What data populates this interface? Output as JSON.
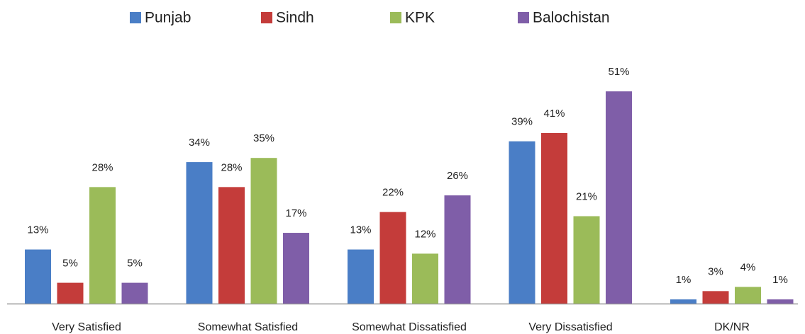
{
  "chart_data": {
    "type": "bar",
    "categories": [
      "Very Satisfied",
      "Somewhat Satisfied",
      "Somewhat Dissatisfied",
      "Very Dissatisfied",
      "DK/NR"
    ],
    "series": [
      {
        "name": "Punjab",
        "color": "#4a7ec6",
        "values": [
          13,
          34,
          13,
          39,
          1
        ],
        "value_labels": [
          "13%",
          "34%",
          "13%",
          "39%",
          "1%"
        ]
      },
      {
        "name": "Sindh",
        "color": "#c43c3a",
        "values": [
          5,
          28,
          22,
          41,
          3
        ],
        "value_labels": [
          "5%",
          "28%",
          "22%",
          "41%",
          "3%"
        ]
      },
      {
        "name": "KPK",
        "color": "#9bbb59",
        "values": [
          28,
          35,
          12,
          21,
          4
        ],
        "value_labels": [
          "28%",
          "35%",
          "12%",
          "21%",
          "4%"
        ]
      },
      {
        "name": "Balochistan",
        "color": "#7f5ea8",
        "values": [
          5,
          17,
          26,
          51,
          1
        ],
        "value_labels": [
          "5%",
          "17%",
          "26%",
          "51%",
          "1%"
        ]
      }
    ],
    "legend": "top"
  }
}
